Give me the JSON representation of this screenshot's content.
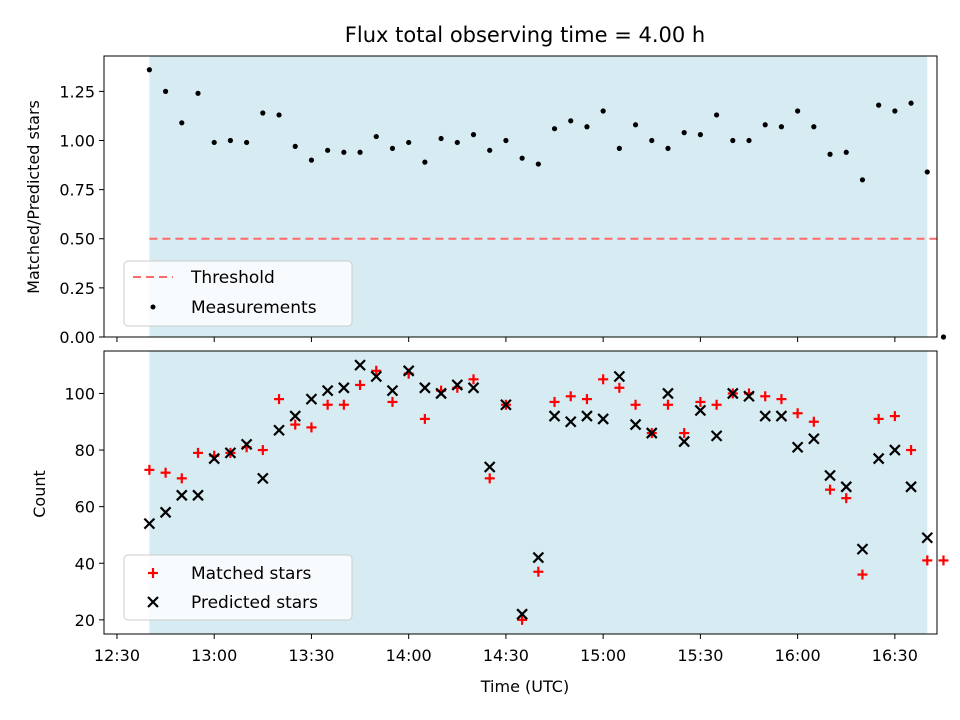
{
  "chart_data": [
    {
      "type": "scatter",
      "title": "Flux total observing time = 4.00 h",
      "ylabel": "Matched/Predicted stars",
      "xlabel": "",
      "xlim": [
        "12:26",
        "16:43"
      ],
      "ylim": [
        0,
        1.43
      ],
      "yticks": [
        "0.00",
        "0.25",
        "0.50",
        "0.75",
        "1.00",
        "1.25"
      ],
      "shaded_interval": [
        "12:40",
        "16:40"
      ],
      "threshold": 0.5,
      "threshold_range": [
        "12:40",
        "16:43"
      ],
      "legend_position": "lower-left",
      "series": [
        {
          "name": "Threshold",
          "style": "dashed-line",
          "color": "#ff7070"
        },
        {
          "name": "Measurements",
          "style": "dot",
          "color": "#000000",
          "x": [
            "12:40",
            "12:45",
            "12:50",
            "12:55",
            "13:00",
            "13:05",
            "13:10",
            "13:15",
            "13:20",
            "13:25",
            "13:30",
            "13:35",
            "13:40",
            "13:45",
            "13:50",
            "13:55",
            "14:00",
            "14:05",
            "14:10",
            "14:15",
            "14:20",
            "14:25",
            "14:30",
            "14:35",
            "14:40",
            "14:45",
            "14:50",
            "14:55",
            "15:00",
            "15:05",
            "15:10",
            "15:15",
            "15:20",
            "15:25",
            "15:30",
            "15:35",
            "15:40",
            "15:45",
            "15:50",
            "15:55",
            "16:00",
            "16:05",
            "16:10",
            "16:15",
            "16:20",
            "16:25",
            "16:30",
            "16:35",
            "16:40",
            "16:45"
          ],
          "y": [
            1.36,
            1.25,
            1.09,
            1.24,
            0.99,
            1.0,
            0.99,
            1.14,
            1.13,
            0.97,
            0.9,
            0.95,
            0.94,
            0.94,
            1.02,
            0.96,
            0.99,
            0.89,
            1.01,
            0.99,
            1.03,
            0.95,
            1.0,
            0.91,
            0.88,
            1.06,
            1.1,
            1.07,
            1.15,
            0.96,
            1.08,
            1.0,
            0.96,
            1.04,
            1.03,
            1.13,
            1.0,
            1.0,
            1.08,
            1.07,
            1.15,
            1.07,
            0.93,
            0.94,
            0.8,
            1.18,
            1.15,
            1.19,
            0.84,
            0.0
          ]
        }
      ]
    },
    {
      "type": "scatter",
      "title": "",
      "ylabel": "Count",
      "xlabel": "Time (UTC)",
      "xlim": [
        "12:26",
        "16:43"
      ],
      "ylim": [
        15,
        115
      ],
      "yticks": [
        "20",
        "40",
        "60",
        "80",
        "100"
      ],
      "xticks": [
        "12:30",
        "13:00",
        "13:30",
        "14:00",
        "14:30",
        "15:00",
        "15:30",
        "16:00",
        "16:30"
      ],
      "shaded_interval": [
        "12:40",
        "16:40"
      ],
      "legend_position": "lower-left",
      "series": [
        {
          "name": "Matched stars",
          "marker": "plus",
          "color": "#ff0000",
          "x": [
            "12:40",
            "12:45",
            "12:50",
            "12:55",
            "13:00",
            "13:05",
            "13:10",
            "13:15",
            "13:20",
            "13:25",
            "13:30",
            "13:35",
            "13:40",
            "13:45",
            "13:50",
            "13:55",
            "14:00",
            "14:05",
            "14:10",
            "14:15",
            "14:20",
            "14:25",
            "14:30",
            "14:35",
            "14:40",
            "14:45",
            "14:50",
            "14:55",
            "15:00",
            "15:05",
            "15:10",
            "15:15",
            "15:20",
            "15:25",
            "15:30",
            "15:35",
            "15:40",
            "15:45",
            "15:50",
            "15:55",
            "16:00",
            "16:05",
            "16:10",
            "16:15",
            "16:20",
            "16:25",
            "16:30",
            "16:35",
            "16:40",
            "16:45"
          ],
          "y": [
            73,
            72,
            70,
            79,
            78,
            79,
            81,
            80,
            98,
            89,
            88,
            96,
            96,
            103,
            108,
            97,
            107,
            91,
            101,
            102,
            105,
            70,
            96,
            20,
            37,
            97,
            99,
            98,
            105,
            102,
            96,
            86,
            96,
            86,
            97,
            96,
            100,
            100,
            99,
            98,
            93,
            90,
            66,
            63,
            36,
            91,
            92,
            80,
            41,
            41
          ]
        },
        {
          "name": "Predicted stars",
          "marker": "x",
          "color": "#000000",
          "x": [
            "12:40",
            "12:45",
            "12:50",
            "12:55",
            "13:00",
            "13:05",
            "13:10",
            "13:15",
            "13:20",
            "13:25",
            "13:30",
            "13:35",
            "13:40",
            "13:45",
            "13:50",
            "13:55",
            "14:00",
            "14:05",
            "14:10",
            "14:15",
            "14:20",
            "14:25",
            "14:30",
            "14:35",
            "14:40",
            "14:45",
            "14:50",
            "14:55",
            "15:00",
            "15:05",
            "15:10",
            "15:15",
            "15:20",
            "15:25",
            "15:30",
            "15:35",
            "15:40",
            "15:45",
            "15:50",
            "15:55",
            "16:00",
            "16:05",
            "16:10",
            "16:15",
            "16:20",
            "16:25",
            "16:30",
            "16:35",
            "16:40"
          ],
          "y": [
            54,
            58,
            64,
            64,
            77,
            79,
            82,
            70,
            87,
            92,
            98,
            101,
            102,
            110,
            106,
            101,
            108,
            102,
            100,
            103,
            102,
            74,
            96,
            22,
            42,
            92,
            90,
            92,
            91,
            106,
            89,
            86,
            100,
            83,
            94,
            85,
            100,
            99,
            92,
            92,
            81,
            84,
            71,
            67,
            45,
            77,
            80,
            67,
            49
          ]
        }
      ]
    }
  ]
}
